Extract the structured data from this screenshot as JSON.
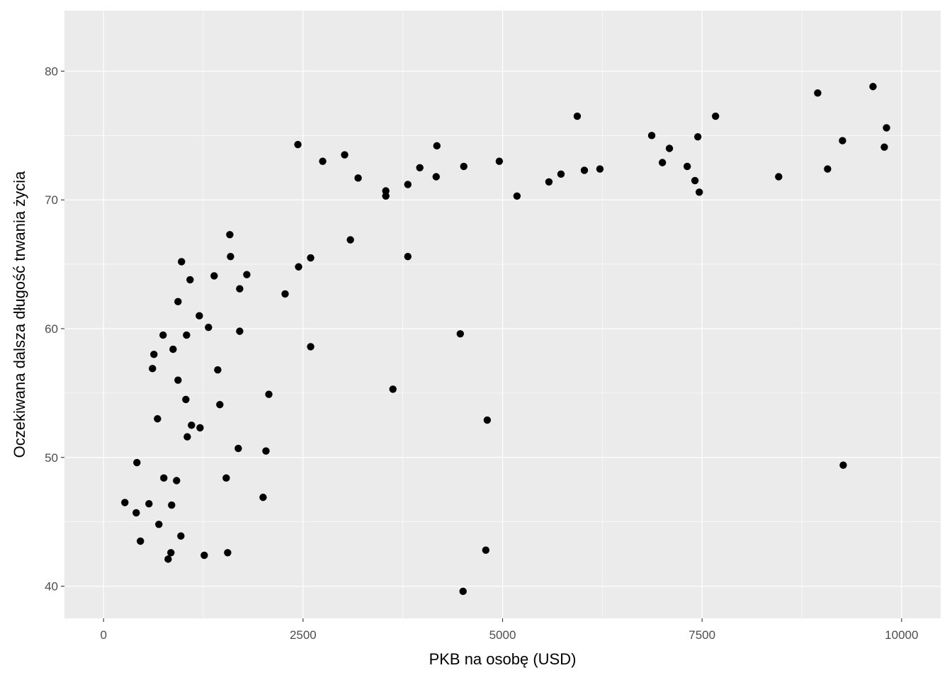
{
  "chart_data": {
    "type": "scatter",
    "xlabel": "PKB na osobę (USD)",
    "ylabel": "Oczekiwana dalsza długość trwania życia",
    "xlim": [
      -490,
      10490
    ],
    "ylim": [
      37.5,
      84.7
    ],
    "xticks": [
      0,
      2500,
      5000,
      7500,
      10000
    ],
    "yticks": [
      40,
      50,
      60,
      70,
      80
    ],
    "grid": true,
    "colors": {
      "panel": "#EBEBEB",
      "grid": "#FFFFFF",
      "point": "#000000"
    },
    "points": [
      [
        267,
        46.5
      ],
      [
        409,
        45.7
      ],
      [
        418,
        49.6
      ],
      [
        462,
        43.5
      ],
      [
        569,
        46.4
      ],
      [
        613,
        56.9
      ],
      [
        631,
        58.0
      ],
      [
        676,
        53.0
      ],
      [
        693,
        44.8
      ],
      [
        746,
        59.5
      ],
      [
        755,
        48.4
      ],
      [
        809,
        42.1
      ],
      [
        844,
        42.6
      ],
      [
        853,
        46.3
      ],
      [
        871,
        58.4
      ],
      [
        915,
        48.2
      ],
      [
        933,
        56.0
      ],
      [
        933,
        62.1
      ],
      [
        969,
        43.9
      ],
      [
        977,
        65.2
      ],
      [
        1031,
        54.5
      ],
      [
        1040,
        59.5
      ],
      [
        1049,
        51.6
      ],
      [
        1084,
        63.8
      ],
      [
        1102,
        52.5
      ],
      [
        1200,
        61.0
      ],
      [
        1209,
        52.3
      ],
      [
        1262,
        42.4
      ],
      [
        1315,
        60.1
      ],
      [
        1386,
        64.1
      ],
      [
        1431,
        56.8
      ],
      [
        1457,
        54.1
      ],
      [
        1537,
        48.4
      ],
      [
        1555,
        42.6
      ],
      [
        1582,
        67.3
      ],
      [
        1591,
        65.6
      ],
      [
        1688,
        50.7
      ],
      [
        1706,
        63.1
      ],
      [
        1706,
        59.8
      ],
      [
        1795,
        64.2
      ],
      [
        1999,
        46.9
      ],
      [
        2035,
        50.5
      ],
      [
        2071,
        54.9
      ],
      [
        2275,
        62.7
      ],
      [
        2435,
        74.3
      ],
      [
        2444,
        64.8
      ],
      [
        2595,
        65.5
      ],
      [
        2595,
        58.6
      ],
      [
        2746,
        73.0
      ],
      [
        3021,
        73.5
      ],
      [
        3093,
        66.9
      ],
      [
        3190,
        71.7
      ],
      [
        3537,
        70.7
      ],
      [
        3537,
        70.3
      ],
      [
        3626,
        55.3
      ],
      [
        3813,
        71.2
      ],
      [
        3813,
        65.6
      ],
      [
        3963,
        72.5
      ],
      [
        4168,
        71.8
      ],
      [
        4177,
        74.2
      ],
      [
        4470,
        59.6
      ],
      [
        4505,
        39.6
      ],
      [
        4514,
        72.6
      ],
      [
        4790,
        42.8
      ],
      [
        4808,
        52.9
      ],
      [
        4959,
        73.0
      ],
      [
        5181,
        70.3
      ],
      [
        5581,
        71.4
      ],
      [
        5732,
        72.0
      ],
      [
        5936,
        76.5
      ],
      [
        6025,
        72.3
      ],
      [
        6220,
        72.4
      ],
      [
        6869,
        75.0
      ],
      [
        7003,
        72.9
      ],
      [
        7091,
        74.0
      ],
      [
        7314,
        72.6
      ],
      [
        7411,
        71.5
      ],
      [
        7447,
        74.9
      ],
      [
        7465,
        70.6
      ],
      [
        7669,
        76.5
      ],
      [
        8460,
        71.8
      ],
      [
        8949,
        78.3
      ],
      [
        9073,
        72.4
      ],
      [
        9260,
        74.6
      ],
      [
        9269,
        49.4
      ],
      [
        9642,
        78.8
      ],
      [
        9784,
        74.1
      ],
      [
        9811,
        75.6
      ]
    ]
  }
}
